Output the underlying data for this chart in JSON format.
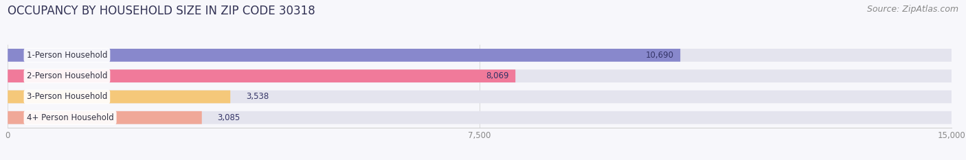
{
  "title": "OCCUPANCY BY HOUSEHOLD SIZE IN ZIP CODE 30318",
  "source": "Source: ZipAtlas.com",
  "categories": [
    "1-Person Household",
    "2-Person Household",
    "3-Person Household",
    "4+ Person Household"
  ],
  "values": [
    10690,
    8069,
    3538,
    3085
  ],
  "bar_colors": [
    "#8888cc",
    "#f07a9a",
    "#f5c87a",
    "#f0a898"
  ],
  "bar_bg_color": "#e4e4ee",
  "xlim": [
    0,
    15000
  ],
  "xticks": [
    0,
    7500,
    15000
  ],
  "background_color": "#f7f7fb",
  "title_fontsize": 12,
  "label_fontsize": 8.5,
  "value_fontsize": 8.5,
  "source_fontsize": 9,
  "bar_height": 0.62
}
